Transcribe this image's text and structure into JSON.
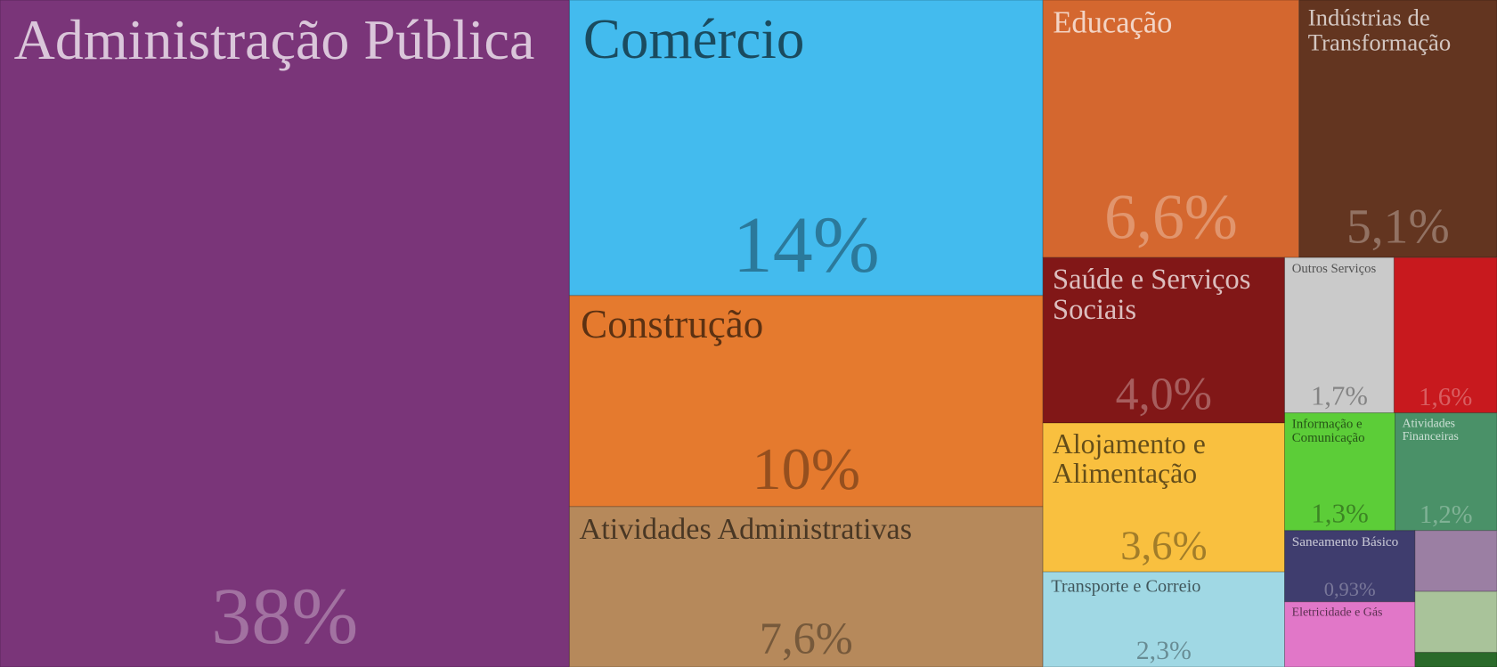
{
  "chart_data": {
    "type": "treemap",
    "categories": [
      "Administração Pública",
      "Comércio",
      "Construção",
      "Atividades Administrativas",
      "Educação",
      "Indústrias de Transformação",
      "Saúde e Serviços Sociais",
      "Alojamento e Alimentação",
      "Transporte e Correio",
      "Outros Serviços",
      null,
      "Informação e Comunicação",
      "Atividades Financeiras",
      "Saneamento Básico",
      "Eletricidade e Gás",
      null,
      null,
      null
    ],
    "values": [
      38,
      14,
      10,
      7.6,
      6.6,
      5.1,
      4.0,
      3.6,
      2.3,
      1.7,
      1.6,
      1.3,
      1.2,
      0.93,
      0.85,
      0.5,
      0.5,
      0.12
    ],
    "value_labels": [
      "38%",
      "14%",
      "10%",
      "7,6%",
      "6,6%",
      "5,1%",
      "4,0%",
      "3,6%",
      "2,3%",
      "1,7%",
      "1,6%",
      "1,3%",
      "1,2%",
      "0,93%",
      null,
      null,
      null,
      null
    ],
    "colors": [
      "#7a3579",
      "#43bbee",
      "#e57a2e",
      "#b6895b",
      "#d4672f",
      "#633520",
      "#811717",
      "#f9c03f",
      "#a0d8e4",
      "#cacaca",
      "#c8191e",
      "#5ccd38",
      "#4a9168",
      "#3f3d6e",
      "#e177c8",
      "#9b7fa3",
      "#a9c39a",
      "#2a6a2a"
    ]
  }
}
